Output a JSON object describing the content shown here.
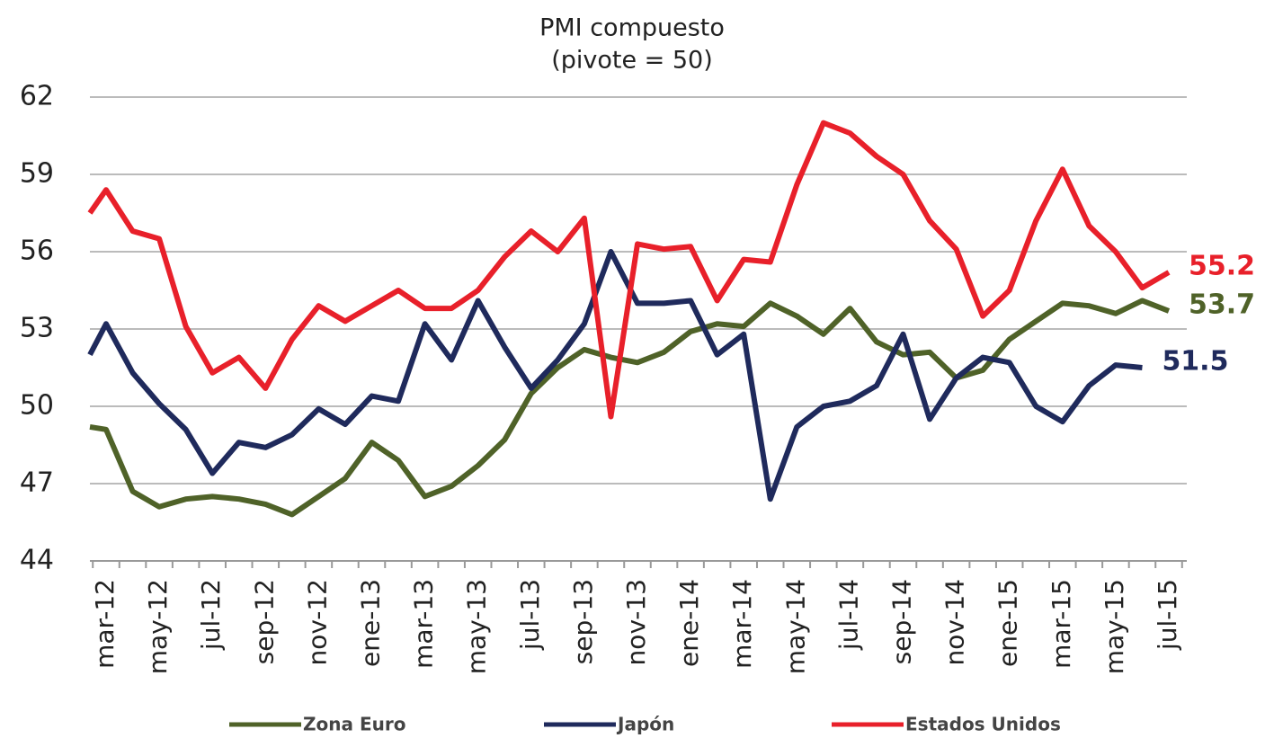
{
  "chart_data": {
    "type": "line",
    "title": "PMI compuesto",
    "subtitle": "(pivote = 50)",
    "categories": [
      null,
      "mar-12",
      null,
      "may-12",
      null,
      "jul-12",
      null,
      "sep-12",
      null,
      "nov-12",
      null,
      "ene-13",
      null,
      "mar-13",
      null,
      "may-13",
      null,
      "jul-13",
      null,
      "sep-13",
      null,
      "nov-13",
      null,
      "ene-14",
      null,
      "mar-14",
      null,
      "may-14",
      null,
      "jul-14",
      null,
      "sep-14",
      null,
      "nov-14",
      null,
      "ene-15",
      null,
      "mar-15",
      null,
      "may-15",
      null,
      "jul-15"
    ],
    "series": [
      {
        "name": "Zona Euro",
        "color": "#4f6228",
        "values": [
          49.2,
          49.1,
          46.7,
          46.1,
          46.4,
          46.5,
          46.4,
          46.2,
          45.8,
          46.5,
          47.2,
          48.6,
          47.9,
          46.5,
          46.9,
          47.7,
          48.7,
          50.5,
          51.5,
          52.2,
          51.9,
          51.7,
          52.1,
          52.9,
          53.2,
          53.1,
          54.0,
          53.5,
          52.8,
          53.8,
          52.5,
          52.0,
          52.1,
          51.1,
          51.4,
          52.6,
          53.3,
          54.0,
          53.9,
          53.6,
          54.1,
          53.7
        ]
      },
      {
        "name": "Japón",
        "color": "#1f2a5c",
        "values": [
          52.0,
          53.2,
          51.3,
          50.1,
          49.1,
          47.4,
          48.6,
          48.4,
          48.9,
          49.9,
          49.3,
          50.4,
          50.2,
          53.2,
          51.8,
          54.1,
          52.3,
          50.7,
          51.8,
          53.2,
          56.0,
          54.0,
          54.0,
          54.1,
          52.0,
          52.8,
          46.4,
          49.2,
          50.0,
          50.2,
          50.8,
          52.8,
          49.5,
          51.1,
          51.9,
          51.7,
          50.0,
          49.4,
          50.8,
          51.6,
          51.5,
          null
        ]
      },
      {
        "name": "Estados Unidos",
        "color": "#e8202a",
        "values": [
          57.5,
          58.4,
          56.8,
          56.5,
          53.1,
          51.3,
          51.9,
          50.7,
          52.6,
          53.9,
          53.3,
          53.9,
          54.5,
          53.8,
          53.8,
          54.5,
          55.8,
          56.8,
          56.0,
          57.3,
          49.6,
          56.3,
          56.1,
          56.2,
          54.1,
          55.7,
          55.6,
          58.6,
          61.0,
          60.6,
          59.7,
          59.0,
          57.2,
          56.1,
          53.5,
          54.5,
          57.2,
          59.2,
          57.0,
          56.0,
          54.6,
          55.2
        ]
      }
    ],
    "ylim": [
      44,
      62
    ],
    "yticks": [
      44,
      47,
      50,
      53,
      56,
      59,
      62
    ],
    "grid": true,
    "legend": "bottom"
  }
}
